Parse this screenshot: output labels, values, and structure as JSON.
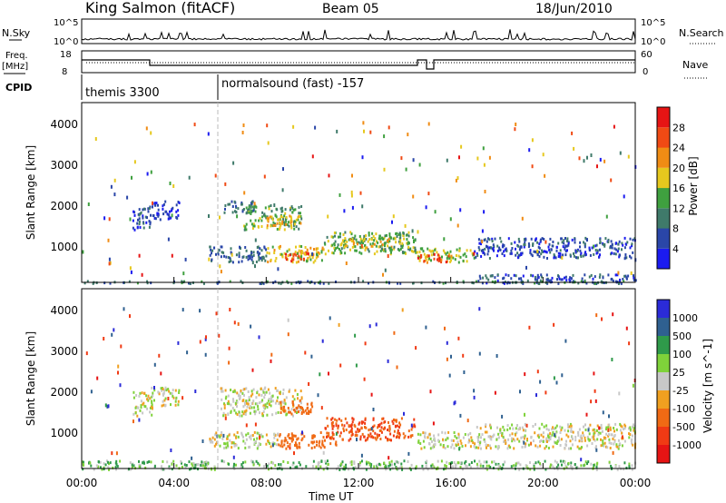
{
  "header": {
    "station": "King Salmon (fitACF)",
    "beam": "Beam 05",
    "date": "18/Jun/2010"
  },
  "top_panels": {
    "nsky_label": "N.Sky",
    "nsky_ticks": [
      "10^5",
      "10^0"
    ],
    "nsearch_label": "N.Search",
    "nsearch_ticks": [
      "10^5",
      "10^0"
    ],
    "freq_label_1": "Freq.",
    "freq_label_2": "[MHz]",
    "freq_ticks": [
      "18",
      "8"
    ],
    "nave_label": "Nave",
    "nave_ticks": [
      "60",
      "0"
    ],
    "cpid_label": "CPID",
    "cpid_segments": [
      {
        "label": "themis 3300",
        "start_hour": 0,
        "end_hour": 6
      },
      {
        "label": "normalsound (fast) -157",
        "start_hour": 6,
        "end_hour": 24
      }
    ]
  },
  "x_axis": {
    "label": "Time UT",
    "ticks": [
      "00:00",
      "04:00",
      "08:00",
      "12:00",
      "16:00",
      "20:00",
      "00:00"
    ]
  },
  "y_axis": {
    "label": "Slant Range [km]",
    "ticks": [
      "1000",
      "2000",
      "3000",
      "4000"
    ]
  },
  "power_scale": {
    "label": "Power [dB]",
    "ticks": [
      "4",
      "8",
      "12",
      "16",
      "20",
      "24",
      "28"
    ],
    "colors": [
      "#1b1bf0",
      "#2a46a8",
      "#3f7a6a",
      "#3fa03f",
      "#e6c81e",
      "#f08c14",
      "#f04a14",
      "#e61414"
    ]
  },
  "velocity_scale": {
    "label": "Velocity [m s^-1]",
    "ticks": [
      "1000",
      "500",
      "100",
      "25",
      "-25",
      "-100",
      "-500",
      "-1000"
    ],
    "colors": [
      "#2b2bd8",
      "#2f6090",
      "#2f9a4a",
      "#7fd23a",
      "#c8c8c8",
      "#f0a020",
      "#f06a14",
      "#f03a14",
      "#e61414"
    ]
  },
  "chart_data": [
    {
      "type": "heatmap",
      "title": "Power",
      "x_range_hours": [
        0,
        24
      ],
      "y_range_km": [
        180,
        4600
      ],
      "value_range": [
        0,
        30
      ],
      "regions": [
        {
          "t0": 2.2,
          "t1": 3.0,
          "r0": 1500,
          "r1": 2100,
          "value": 6
        },
        {
          "t0": 3.0,
          "t1": 4.2,
          "r0": 1750,
          "r1": 2200,
          "value": 4
        },
        {
          "t0": 6.0,
          "t1": 7.5,
          "r0": 1900,
          "r1": 2200,
          "value": 8
        },
        {
          "t0": 7.0,
          "t1": 9.5,
          "r0": 1500,
          "r1": 2100,
          "value": 14
        },
        {
          "t0": 8.0,
          "t1": 9.5,
          "r0": 1600,
          "r1": 1850,
          "value": 20
        },
        {
          "t0": 5.5,
          "t1": 8.0,
          "r0": 700,
          "r1": 1100,
          "value": 8
        },
        {
          "t0": 8.0,
          "t1": 10.5,
          "r0": 700,
          "r1": 1100,
          "value": 18
        },
        {
          "t0": 8.8,
          "t1": 9.8,
          "r0": 720,
          "r1": 950,
          "value": 28
        },
        {
          "t0": 10.5,
          "t1": 14.5,
          "r0": 900,
          "r1": 1450,
          "value": 14
        },
        {
          "t0": 11.0,
          "t1": 13.5,
          "r0": 1050,
          "r1": 1300,
          "value": 18
        },
        {
          "t0": 14.5,
          "t1": 17.0,
          "r0": 700,
          "r1": 1050,
          "value": 16
        },
        {
          "t0": 14.5,
          "t1": 16.0,
          "r0": 700,
          "r1": 900,
          "value": 26
        },
        {
          "t0": 17.0,
          "t1": 24.0,
          "r0": 800,
          "r1": 1300,
          "value": 6
        },
        {
          "t0": 17.0,
          "t1": 24.0,
          "r0": 180,
          "r1": 400,
          "value": 6
        },
        {
          "t0": 0.0,
          "t1": 24.0,
          "r0": 180,
          "r1": 240,
          "value": 10
        }
      ]
    },
    {
      "type": "heatmap",
      "title": "Velocity",
      "x_range_hours": [
        0,
        24
      ],
      "y_range_km": [
        180,
        4600
      ],
      "value_range": [
        -1000,
        1000
      ],
      "regions": [
        {
          "t0": 2.2,
          "t1": 3.0,
          "r0": 1500,
          "r1": 2100,
          "value": 0
        },
        {
          "t0": 3.0,
          "t1": 4.2,
          "r0": 1750,
          "r1": 2200,
          "value": 0
        },
        {
          "t0": 6.0,
          "t1": 9.5,
          "r0": 1500,
          "r1": 2200,
          "value": 0
        },
        {
          "t0": 8.5,
          "t1": 10.0,
          "r0": 1550,
          "r1": 1900,
          "value": -200
        },
        {
          "t0": 5.5,
          "t1": 8.5,
          "r0": 700,
          "r1": 1100,
          "value": 0
        },
        {
          "t0": 8.5,
          "t1": 11.0,
          "r0": 700,
          "r1": 1100,
          "value": -200
        },
        {
          "t0": 10.5,
          "t1": 14.5,
          "r0": 900,
          "r1": 1450,
          "value": -300
        },
        {
          "t0": 14.5,
          "t1": 17.0,
          "r0": 700,
          "r1": 1100,
          "value": 0
        },
        {
          "t0": 17.0,
          "t1": 24.0,
          "r0": 700,
          "r1": 1300,
          "value": 0
        },
        {
          "t0": 0.0,
          "t1": 24.0,
          "r0": 180,
          "r1": 400,
          "value": 50
        }
      ]
    }
  ]
}
